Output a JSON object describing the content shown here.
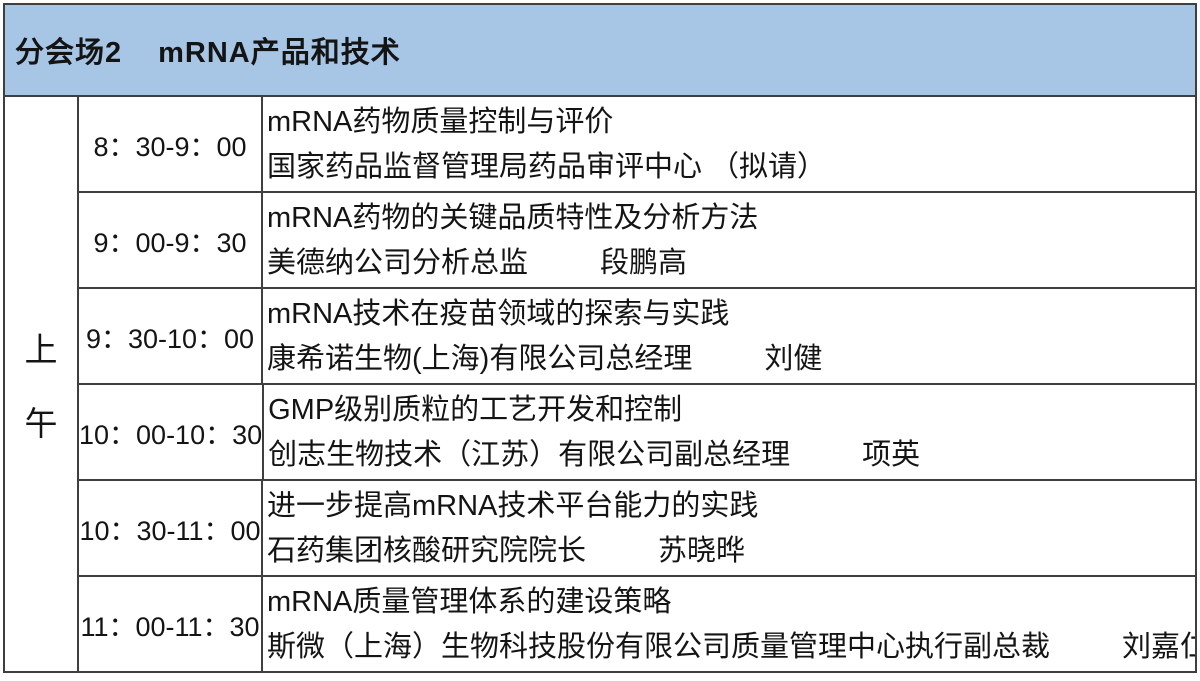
{
  "header": {
    "session_label": "分会场2",
    "session_title": "mRNA产品和技术"
  },
  "period_label": "上午",
  "colors": {
    "header_bg": "#a7c6e5",
    "border": "#3f3f3f",
    "text": "#141414"
  },
  "rows": [
    {
      "time": "8：30-9：00",
      "title": "mRNA药物质量控制与评价",
      "affiliation": "国家药品监督管理局药品审评中心 （拟请）",
      "speaker": ""
    },
    {
      "time": "9：00-9：30",
      "title": "mRNA药物的关键品质特性及分析方法",
      "affiliation": "美德纳公司分析总监",
      "speaker": "段鹏高"
    },
    {
      "time": "9：30-10：00",
      "title": "mRNA技术在疫苗领域的探索与实践",
      "affiliation": "康希诺生物(上海)有限公司总经理",
      "speaker": "刘健"
    },
    {
      "time": "10：00-10：30",
      "title": "GMP级别质粒的工艺开发和控制",
      "affiliation": "创志生物技术（江苏）有限公司副总经理",
      "speaker": "项英"
    },
    {
      "time": "10：30-11：00",
      "title": "进一步提高mRNA技术平台能力的实践",
      "affiliation": "石药集团核酸研究院院长",
      "speaker": "苏晓晔"
    },
    {
      "time": "11：00-11：30",
      "title": "mRNA质量管理体系的建设策略",
      "affiliation": "斯微（上海）生物科技股份有限公司质量管理中心执行副总裁",
      "speaker": "刘嘉仁"
    }
  ]
}
